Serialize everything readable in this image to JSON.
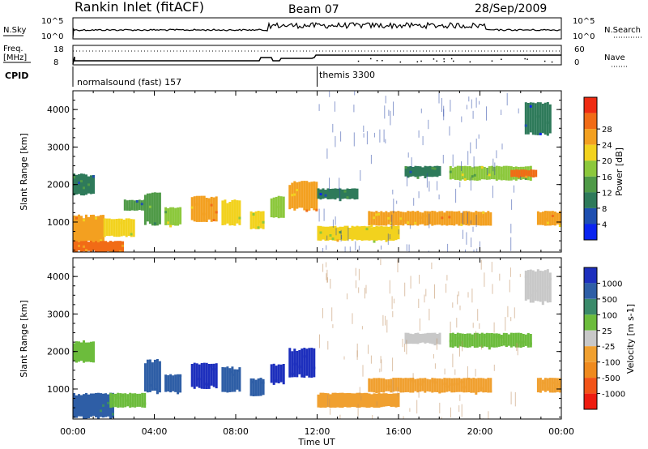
{
  "header": {
    "station": "Rankin Inlet (fitACF)",
    "beam": "Beam 07",
    "date": "28/Sep/2009"
  },
  "panels": {
    "nsky": {
      "label": "N.Sky",
      "right_label": "N.Search",
      "left_ticks": [
        "10^5",
        "10^0"
      ],
      "right_ticks": [
        "10^5",
        "10^0"
      ]
    },
    "freq": {
      "label": "Freq.",
      "unit": "[MHz]",
      "right_label": "Nave",
      "left_ticks": [
        "18",
        "8"
      ],
      "right_ticks": [
        "60",
        "0"
      ]
    },
    "cpid": {
      "label": "CPID",
      "segments": [
        {
          "name": "normalsound (fast) 157",
          "start_hour": 0
        },
        {
          "name": "themis 3300",
          "start_hour": 12
        }
      ]
    }
  },
  "colors": {
    "power": [
      "#0a24f0",
      "#1e4fb0",
      "#2e7a5a",
      "#4f9a47",
      "#8cc83c",
      "#f2d21e",
      "#f3a020",
      "#f16b16",
      "#ef2b12"
    ],
    "velocity": [
      "#1d2fbd",
      "#2e5ea6",
      "#3a8a6a",
      "#6cbc3c",
      "#c8c8c8",
      "#f0a030",
      "#ef8a1e",
      "#f25418",
      "#ee1c10"
    ]
  },
  "chart_data": [
    {
      "type": "heatmap",
      "name": "power",
      "xlabel": "",
      "ylabel": "Slant Range [km]",
      "x_unit": "hour UT",
      "xlim": [
        0,
        24
      ],
      "ylim": [
        200,
        4500
      ],
      "y_ticks": [
        1000,
        2000,
        3000,
        4000
      ],
      "colorbar_label": "Power [dB]",
      "colorbar_ticks": [
        4,
        8,
        12,
        16,
        20,
        24,
        28
      ],
      "cells": [
        {
          "t0": 0.0,
          "t1": 1.5,
          "r0": 400,
          "r1": 1200,
          "value": 25
        },
        {
          "t0": 0.0,
          "t1": 2.5,
          "r0": 200,
          "r1": 500,
          "value": 28
        },
        {
          "t0": 0.0,
          "t1": 1.0,
          "r0": 1700,
          "r1": 2300,
          "value": 10
        },
        {
          "t0": 1.5,
          "t1": 3.0,
          "r0": 600,
          "r1": 1100,
          "value": 20
        },
        {
          "t0": 2.5,
          "t1": 3.5,
          "r0": 1300,
          "r1": 1600,
          "value": 12
        },
        {
          "t0": 3.5,
          "t1": 4.3,
          "r0": 900,
          "r1": 1800,
          "value": 14
        },
        {
          "t0": 4.5,
          "t1": 5.3,
          "r0": 900,
          "r1": 1400,
          "value": 18
        },
        {
          "t0": 5.8,
          "t1": 7.0,
          "r0": 1000,
          "r1": 1700,
          "value": 26
        },
        {
          "t0": 7.3,
          "t1": 8.2,
          "r0": 900,
          "r1": 1600,
          "value": 22
        },
        {
          "t0": 8.7,
          "t1": 9.3,
          "r0": 800,
          "r1": 1300,
          "value": 20
        },
        {
          "t0": 9.7,
          "t1": 10.4,
          "r0": 1100,
          "r1": 1700,
          "value": 16
        },
        {
          "t0": 10.6,
          "t1": 12.0,
          "r0": 1300,
          "r1": 2100,
          "value": 27
        },
        {
          "t0": 12.0,
          "t1": 16.0,
          "r0": 500,
          "r1": 900,
          "value": 20
        },
        {
          "t0": 12.0,
          "t1": 14.0,
          "r0": 1600,
          "r1": 1900,
          "value": 8
        },
        {
          "t0": 14.5,
          "t1": 20.5,
          "r0": 900,
          "r1": 1300,
          "value": 24
        },
        {
          "t0": 16.3,
          "t1": 18.0,
          "r0": 2200,
          "r1": 2500,
          "value": 10
        },
        {
          "t0": 18.5,
          "t1": 22.5,
          "r0": 2100,
          "r1": 2500,
          "value": 18
        },
        {
          "t0": 21.5,
          "t1": 22.8,
          "r0": 2200,
          "r1": 2400,
          "value": 28
        },
        {
          "t0": 22.8,
          "t1": 24.0,
          "r0": 900,
          "r1": 1300,
          "value": 26
        },
        {
          "t0": 22.2,
          "t1": 23.5,
          "r0": 3300,
          "r1": 4200,
          "value": 8
        }
      ]
    },
    {
      "type": "heatmap",
      "name": "velocity",
      "xlabel": "Time UT",
      "ylabel": "Slant Range [km]",
      "x_unit": "hour UT",
      "xlim": [
        0,
        24
      ],
      "ylim": [
        200,
        4500
      ],
      "x_ticks": [
        "00:00",
        "04:00",
        "08:00",
        "12:00",
        "16:00",
        "20:00",
        "00:00"
      ],
      "y_ticks": [
        1000,
        2000,
        3000,
        4000
      ],
      "colorbar_label": "Velocity [m s-1]",
      "colorbar_ticks": [
        1000,
        500,
        100,
        25,
        -25,
        -100,
        -500,
        -1000
      ],
      "cells": [
        {
          "t0": 0.0,
          "t1": 2.0,
          "r0": 200,
          "r1": 900,
          "value": 100
        },
        {
          "t0": 0.0,
          "t1": 1.0,
          "r0": 1700,
          "r1": 2300,
          "value": 0
        },
        {
          "t0": 1.8,
          "t1": 3.5,
          "r0": 500,
          "r1": 900,
          "value": 0
        },
        {
          "t0": 3.5,
          "t1": 4.3,
          "r0": 900,
          "r1": 1800,
          "value": 300
        },
        {
          "t0": 4.5,
          "t1": 5.3,
          "r0": 900,
          "r1": 1400,
          "value": 300
        },
        {
          "t0": 5.8,
          "t1": 7.0,
          "r0": 1000,
          "r1": 1700,
          "value": 800
        },
        {
          "t0": 7.3,
          "t1": 8.2,
          "r0": 900,
          "r1": 1600,
          "value": 300
        },
        {
          "t0": 8.7,
          "t1": 9.3,
          "r0": 800,
          "r1": 1300,
          "value": 200
        },
        {
          "t0": 9.7,
          "t1": 10.4,
          "r0": 1100,
          "r1": 1700,
          "value": 600
        },
        {
          "t0": 10.6,
          "t1": 11.8,
          "r0": 1300,
          "r1": 2100,
          "value": 600
        },
        {
          "t0": 12.0,
          "t1": 16.0,
          "r0": 500,
          "r1": 900,
          "value": -300
        },
        {
          "t0": 14.5,
          "t1": 20.5,
          "r0": 900,
          "r1": 1300,
          "value": -300
        },
        {
          "t0": 16.3,
          "t1": 18.0,
          "r0": 2200,
          "r1": 2500,
          "value": -60
        },
        {
          "t0": 18.5,
          "t1": 22.5,
          "r0": 2100,
          "r1": 2500,
          "value": 0
        },
        {
          "t0": 22.8,
          "t1": 24.0,
          "r0": 900,
          "r1": 1300,
          "value": -300
        },
        {
          "t0": 22.2,
          "t1": 23.5,
          "r0": 3300,
          "r1": 4200,
          "value": -60
        }
      ]
    }
  ]
}
